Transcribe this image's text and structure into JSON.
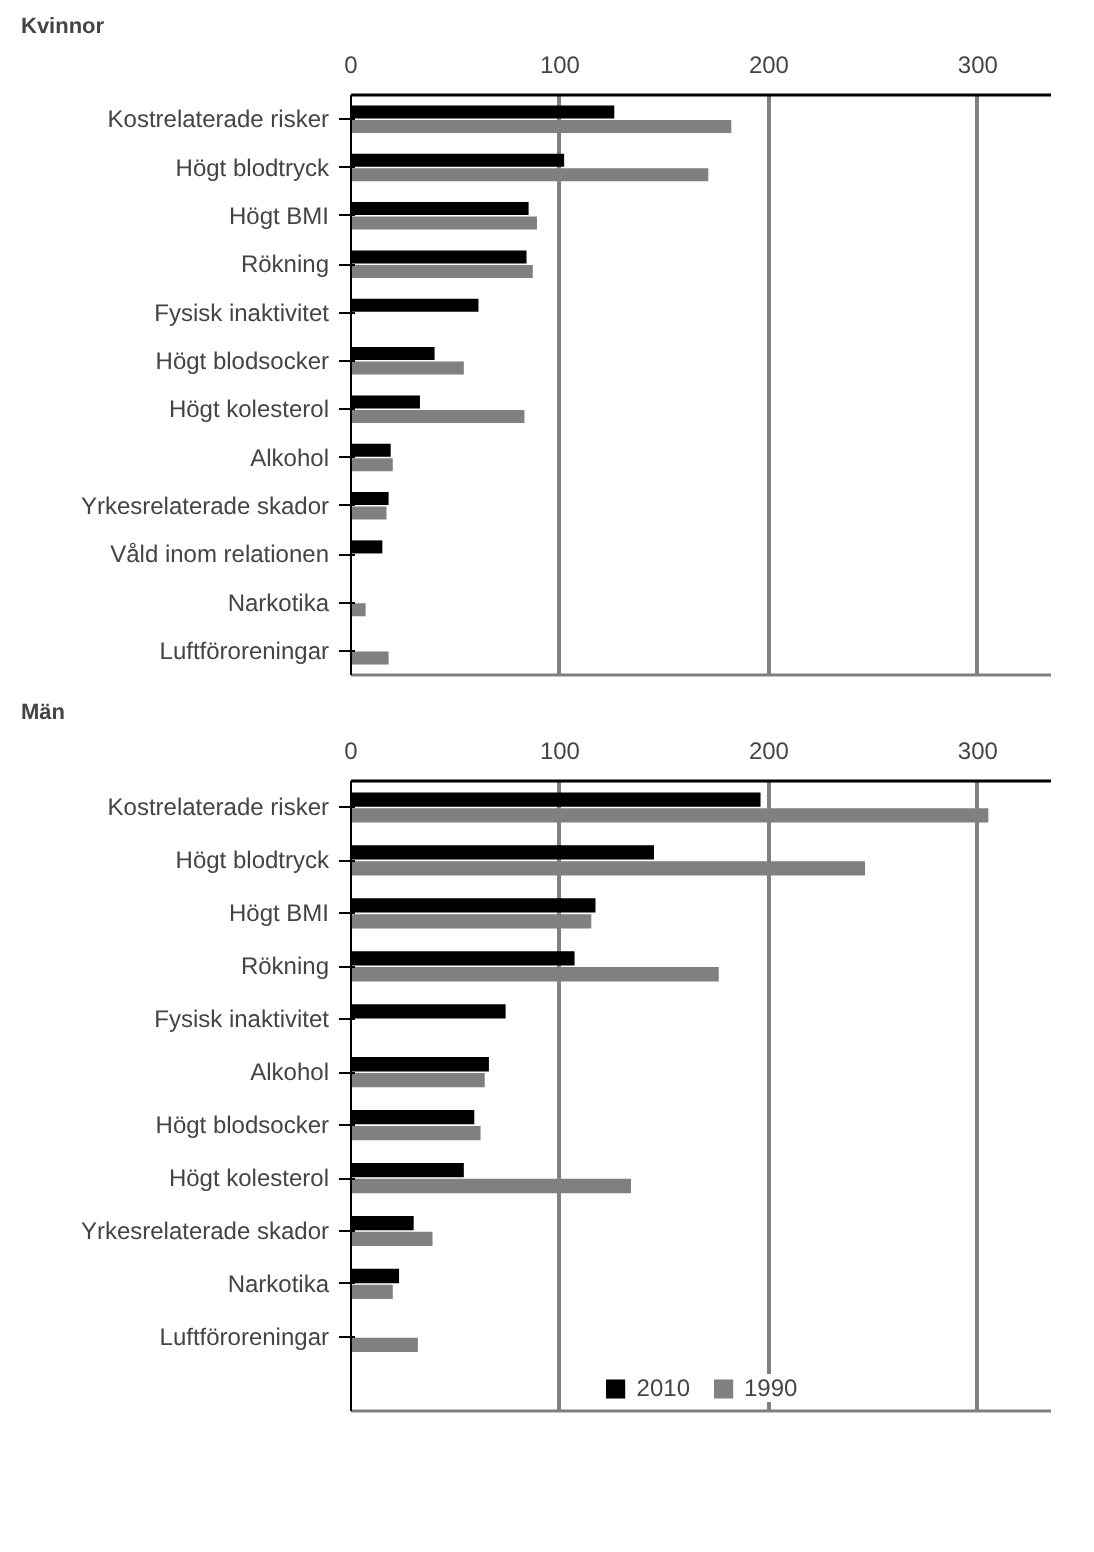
{
  "chart_data": [
    {
      "type": "bar",
      "orientation": "horizontal",
      "title": "Kvinnor",
      "categories": [
        "Kostrelaterade risker",
        "Högt blodtryck",
        "Högt BMI",
        "Rökning",
        "Fysisk inaktivitet",
        "Högt blodsocker",
        "Högt kolesterol",
        "Alkohol",
        "Yrkesrelaterade skador",
        "Våld inom relationen",
        "Narkotika",
        "Luftföroreningar"
      ],
      "series": [
        {
          "color": "#000000",
          "values": [
            126,
            102,
            85,
            84,
            61,
            40,
            33,
            19,
            18,
            15,
            null,
            null
          ]
        },
        {
          "color": "#808080",
          "values": [
            182,
            171,
            89,
            87,
            null,
            54,
            83,
            20,
            17,
            null,
            7,
            18
          ]
        }
      ],
      "xlim": [
        0,
        335
      ],
      "xticks": [
        0,
        100,
        200,
        300
      ],
      "grid": "x",
      "legend": false
    },
    {
      "type": "bar",
      "orientation": "horizontal",
      "title": "Män",
      "categories": [
        "Kostrelaterade risker",
        "Högt blodtryck",
        "Högt BMI",
        "Rökning",
        "Fysisk inaktivitet",
        "Alkohol",
        "Högt blodsocker",
        "Högt kolesterol",
        "Yrkesrelaterade skador",
        "Narkotika",
        "Luftföroreningar"
      ],
      "series": [
        {
          "name": "2010",
          "color": "#000000",
          "values": [
            196,
            145,
            117,
            107,
            74,
            66,
            59,
            54,
            30,
            23,
            null
          ]
        },
        {
          "name": "1990",
          "color": "#808080",
          "values": [
            305,
            246,
            115,
            176,
            null,
            64,
            62,
            134,
            39,
            20,
            32
          ]
        }
      ],
      "xlim": [
        0,
        335
      ],
      "xticks": [
        0,
        100,
        200,
        300
      ],
      "grid": "x",
      "legend": "bottom"
    }
  ]
}
